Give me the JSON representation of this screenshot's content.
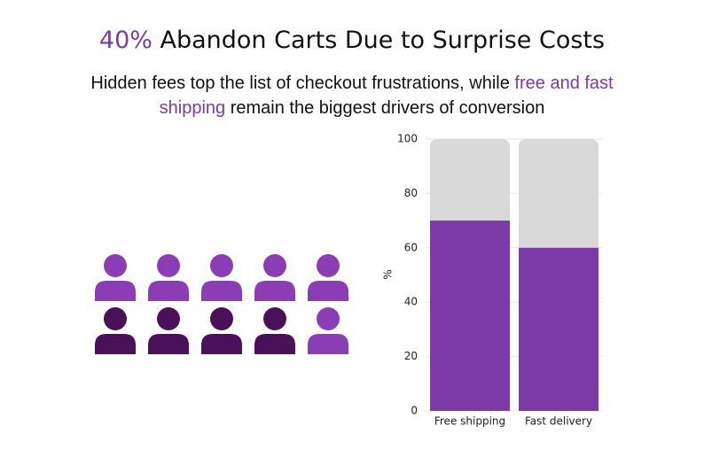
{
  "header": {
    "title": [
      "40%",
      " Abandon Carts Due to Surprise Costs"
    ],
    "subtitle": [
      "Hidden fees top the list of checkout frustrations, while ",
      "free and fast shipping",
      " remain the biggest drivers of conversion"
    ],
    "accent": "#7b3aa6"
  },
  "pictogram": {
    "count": 10,
    "highlighted": 4,
    "color": "#8a3db5",
    "highlight_color": "#4a1059"
  },
  "chart_data": {
    "type": "bar",
    "categories": [
      "Free shipping",
      "Fast delivery"
    ],
    "values": [
      70,
      60
    ],
    "color": "#7b3aa6",
    "track_color": "#d9d9d9",
    "ylabel": "%",
    "ylim": [
      0,
      100
    ],
    "yticks": [
      0,
      20,
      40,
      60,
      80,
      100
    ],
    "grid": true
  }
}
